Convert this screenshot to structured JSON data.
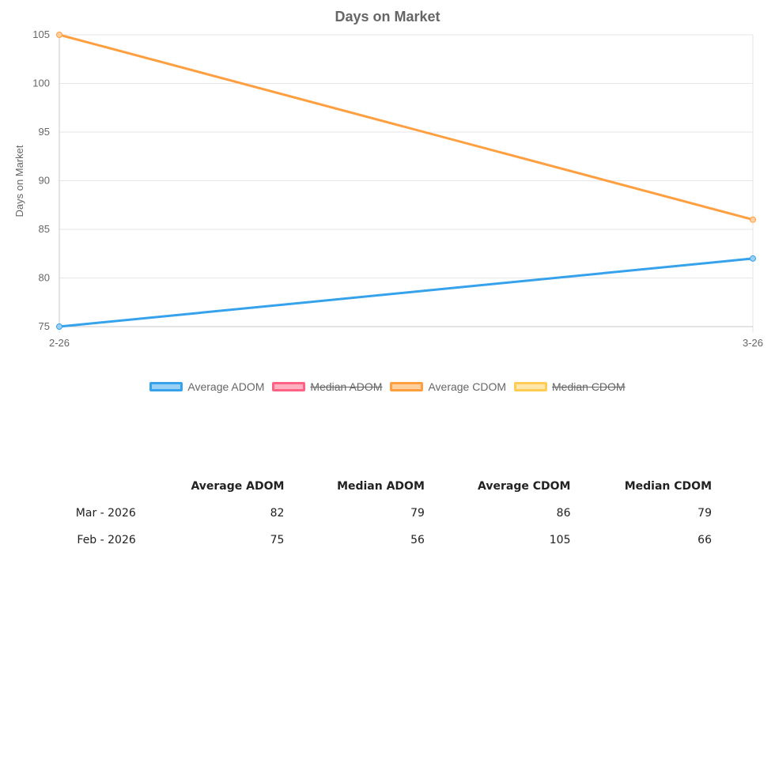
{
  "chart_data": {
    "type": "line",
    "title": "Days on Market",
    "ylabel": "Days on Market",
    "xlabel": "",
    "categories": [
      "2-26",
      "3-26"
    ],
    "ylim": [
      75,
      105
    ],
    "yticks": [
      75,
      80,
      85,
      90,
      95,
      100,
      105
    ],
    "grid": true,
    "legend_position": "bottom",
    "series": [
      {
        "name": "Average ADOM",
        "values": [
          75,
          82
        ],
        "color": "#36a2eb",
        "fill": "#9ad0f5",
        "hidden": false
      },
      {
        "name": "Median ADOM",
        "values": [
          56,
          79
        ],
        "color": "#ff6384",
        "fill": "#ffb1c1",
        "hidden": true
      },
      {
        "name": "Average CDOM",
        "values": [
          105,
          86
        ],
        "color": "#ff9f40",
        "fill": "#ffcf9f",
        "hidden": false
      },
      {
        "name": "Median CDOM",
        "values": [
          66,
          79
        ],
        "color": "#ffcd56",
        "fill": "#ffe6aa",
        "hidden": true
      }
    ]
  },
  "table": {
    "headers": [
      "",
      "Average ADOM",
      "Median ADOM",
      "Average CDOM",
      "Median CDOM"
    ],
    "rows": [
      [
        "Mar - 2026",
        "82",
        "79",
        "86",
        "79"
      ],
      [
        "Feb - 2026",
        "75",
        "56",
        "105",
        "66"
      ]
    ]
  }
}
